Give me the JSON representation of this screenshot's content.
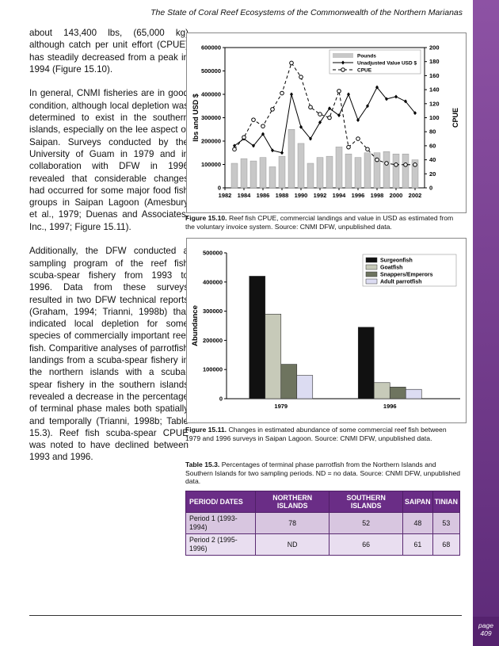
{
  "header": {
    "title": "The State of Coral Reef Ecosystems of the Commonwealth of the Northern Marianas"
  },
  "body": {
    "paragraphs": [
      "about 143,400 lbs, (65,000 kg) although catch per unit effort (CPUE) has steadily decreased from a peak in 1994 (Figure 15.10).",
      "In general, CNMI fisheries are in good condition, although local depletion was determined to exist in the southern islands, especially on the lee aspect of Saipan.  Surveys conducted by the University of Guam in 1979 and in collaboration with DFW in 1996 revealed that considerable changes had occurred for some major food fish groups in Saipan Lagoon (Amesbury et al., 1979; Duenas and Associates, Inc., 1997; Figure 15.11).",
      "Additionally, the DFW conducted a sampling program of the reef fish scuba-spear fishery from 1993 to 1996.  Data from these surveys resulted in two DFW technical reports (Graham, 1994; Trianni, 1998b) that indicated local depletion for some species of commercially important reef fish.  Comparitive analyses of parrotfish landings from a scuba-spear fishery in the northern islands with a scuba-spear fishery in the southern islands revealed a decrease in the percentage of terminal phase males both spatially and temporally (Trianni, 1998b; Table 15.3).  Reef fish scuba-spear CPUE was noted to have declined between 1993 and 1996."
    ]
  },
  "chart_data": [
    {
      "type": "combo",
      "y_axis_label": "lbs and USD $",
      "y2_axis_label": "CPUE",
      "x": [
        1983,
        1984,
        1985,
        1986,
        1987,
        1988,
        1989,
        1990,
        1991,
        1992,
        1993,
        1994,
        1995,
        1996,
        1997,
        1998,
        1999,
        2000,
        2001,
        2002
      ],
      "xlim": [
        1982,
        2003
      ],
      "xticks": [
        1982,
        1984,
        1986,
        1988,
        1990,
        1992,
        1994,
        1996,
        1998,
        2000,
        2002
      ],
      "ylim": [
        0,
        600000
      ],
      "yticks": [
        0,
        100000,
        200000,
        300000,
        400000,
        500000,
        600000
      ],
      "y2lim": [
        0,
        200
      ],
      "y2ticks": [
        0,
        20,
        40,
        60,
        80,
        100,
        120,
        140,
        160,
        180,
        200
      ],
      "legend": "upper right",
      "series": [
        {
          "name": "Pounds",
          "type": "bar",
          "color": "#c8c8c8",
          "values": [
            105000,
            125000,
            115000,
            130000,
            90000,
            135000,
            250000,
            190000,
            105000,
            130000,
            135000,
            175000,
            145000,
            130000,
            150000,
            150000,
            155000,
            145000,
            145000,
            120000
          ]
        },
        {
          "name": "Unadjusted Value USD $",
          "type": "line",
          "marker": "diamond",
          "color": "#000000",
          "values": [
            180000,
            210000,
            180000,
            230000,
            160000,
            150000,
            400000,
            260000,
            210000,
            280000,
            340000,
            310000,
            400000,
            290000,
            350000,
            430000,
            380000,
            390000,
            370000,
            320000
          ]
        },
        {
          "name": "CPUE",
          "type": "line",
          "marker": "circle",
          "dashed": true,
          "axis": "y2",
          "color": "#000000",
          "values": [
            55,
            72,
            97,
            88,
            112,
            135,
            178,
            158,
            115,
            105,
            100,
            138,
            58,
            70,
            55,
            40,
            35,
            33,
            33,
            33
          ]
        }
      ]
    },
    {
      "type": "bar",
      "y_axis_label": "Abundance",
      "categories": [
        "1979",
        "1996"
      ],
      "ylim": [
        0,
        500000
      ],
      "yticks": [
        0,
        100000,
        200000,
        300000,
        400000,
        500000
      ],
      "legend": "upper right",
      "series": [
        {
          "name": "Surgeonfish",
          "color": "#111111",
          "values": [
            420000,
            245000
          ]
        },
        {
          "name": "Goatfish",
          "color": "#c7cab9",
          "values": [
            290000,
            55000
          ]
        },
        {
          "name": "Snappers/Emperors",
          "color": "#6e745f",
          "values": [
            118000,
            40000
          ]
        },
        {
          "name": "Adult parrotfish",
          "color": "#dcdcf2",
          "values": [
            80000,
            32000
          ]
        }
      ]
    }
  ],
  "figures": [
    {
      "label": "Figure 15.10.",
      "caption": "Reef fish CPUE, commercial landings and value in USD as estimated from the voluntary invoice system.  Source:  CNMI DFW, unpublished data."
    },
    {
      "label": "Figure 15.11.",
      "caption": "Changes in estimated abundance of some commercial reef fish between 1979 and 1996 surveys in Saipan Lagoon.  Source:  CNMI DFW, unpublished data."
    }
  ],
  "table": {
    "label": "Table 15.3.",
    "caption": "Percentages of terminal phase parrotfish from the Northern Islands and Southern Islands for two sampling periods. ND = no data.  Source:  CNMI DFW, unpublished data.",
    "columns": [
      "PERIOD/ DATES",
      "NORTHERN ISLANDS",
      "SOUTHERN ISLANDS",
      "SAIPAN",
      "TINIAN"
    ],
    "rows": [
      [
        "Period 1 (1993-1994)",
        78,
        52,
        48,
        53
      ],
      [
        "Period 2 (1995-1996)",
        "ND",
        66,
        61,
        68
      ]
    ]
  },
  "footer": {
    "page_word": "page",
    "page_number": 409
  }
}
